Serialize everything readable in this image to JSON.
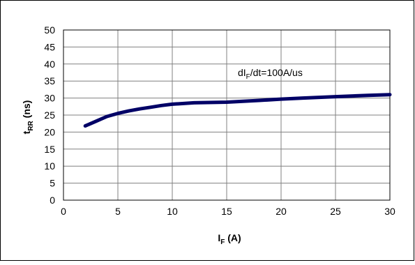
{
  "chart_data": {
    "type": "line",
    "xlabel": {
      "main": "I",
      "sub": "F",
      "tail": " (A)"
    },
    "ylabel": {
      "main": "t",
      "sub": "RR",
      "tail": " (ns)"
    },
    "xlim": [
      0,
      30
    ],
    "ylim": [
      0,
      50
    ],
    "xticks": [
      "0",
      "5",
      "10",
      "15",
      "20",
      "25",
      "30"
    ],
    "yticks": [
      "0",
      "5",
      "10",
      "15",
      "20",
      "25",
      "30",
      "35",
      "40",
      "45",
      "50"
    ],
    "grid": true,
    "line_color": "#000066",
    "annotation": {
      "main": "dI",
      "sub": "F",
      "tail": "/dt=100A/us",
      "x": 19,
      "y": 37.5
    },
    "series": [
      {
        "points": [
          {
            "x": 2,
            "y": 21.8
          },
          {
            "x": 3,
            "y": 23.2
          },
          {
            "x": 4,
            "y": 24.6
          },
          {
            "x": 5,
            "y": 25.5
          },
          {
            "x": 6,
            "y": 26.2
          },
          {
            "x": 7,
            "y": 26.8
          },
          {
            "x": 8,
            "y": 27.3
          },
          {
            "x": 9,
            "y": 27.8
          },
          {
            "x": 10,
            "y": 28.2
          },
          {
            "x": 12,
            "y": 28.6
          },
          {
            "x": 15,
            "y": 28.8
          },
          {
            "x": 18,
            "y": 29.3
          },
          {
            "x": 20,
            "y": 29.7
          },
          {
            "x": 22,
            "y": 30.0
          },
          {
            "x": 25,
            "y": 30.4
          },
          {
            "x": 28,
            "y": 30.8
          },
          {
            "x": 30,
            "y": 31.0
          }
        ]
      }
    ]
  }
}
